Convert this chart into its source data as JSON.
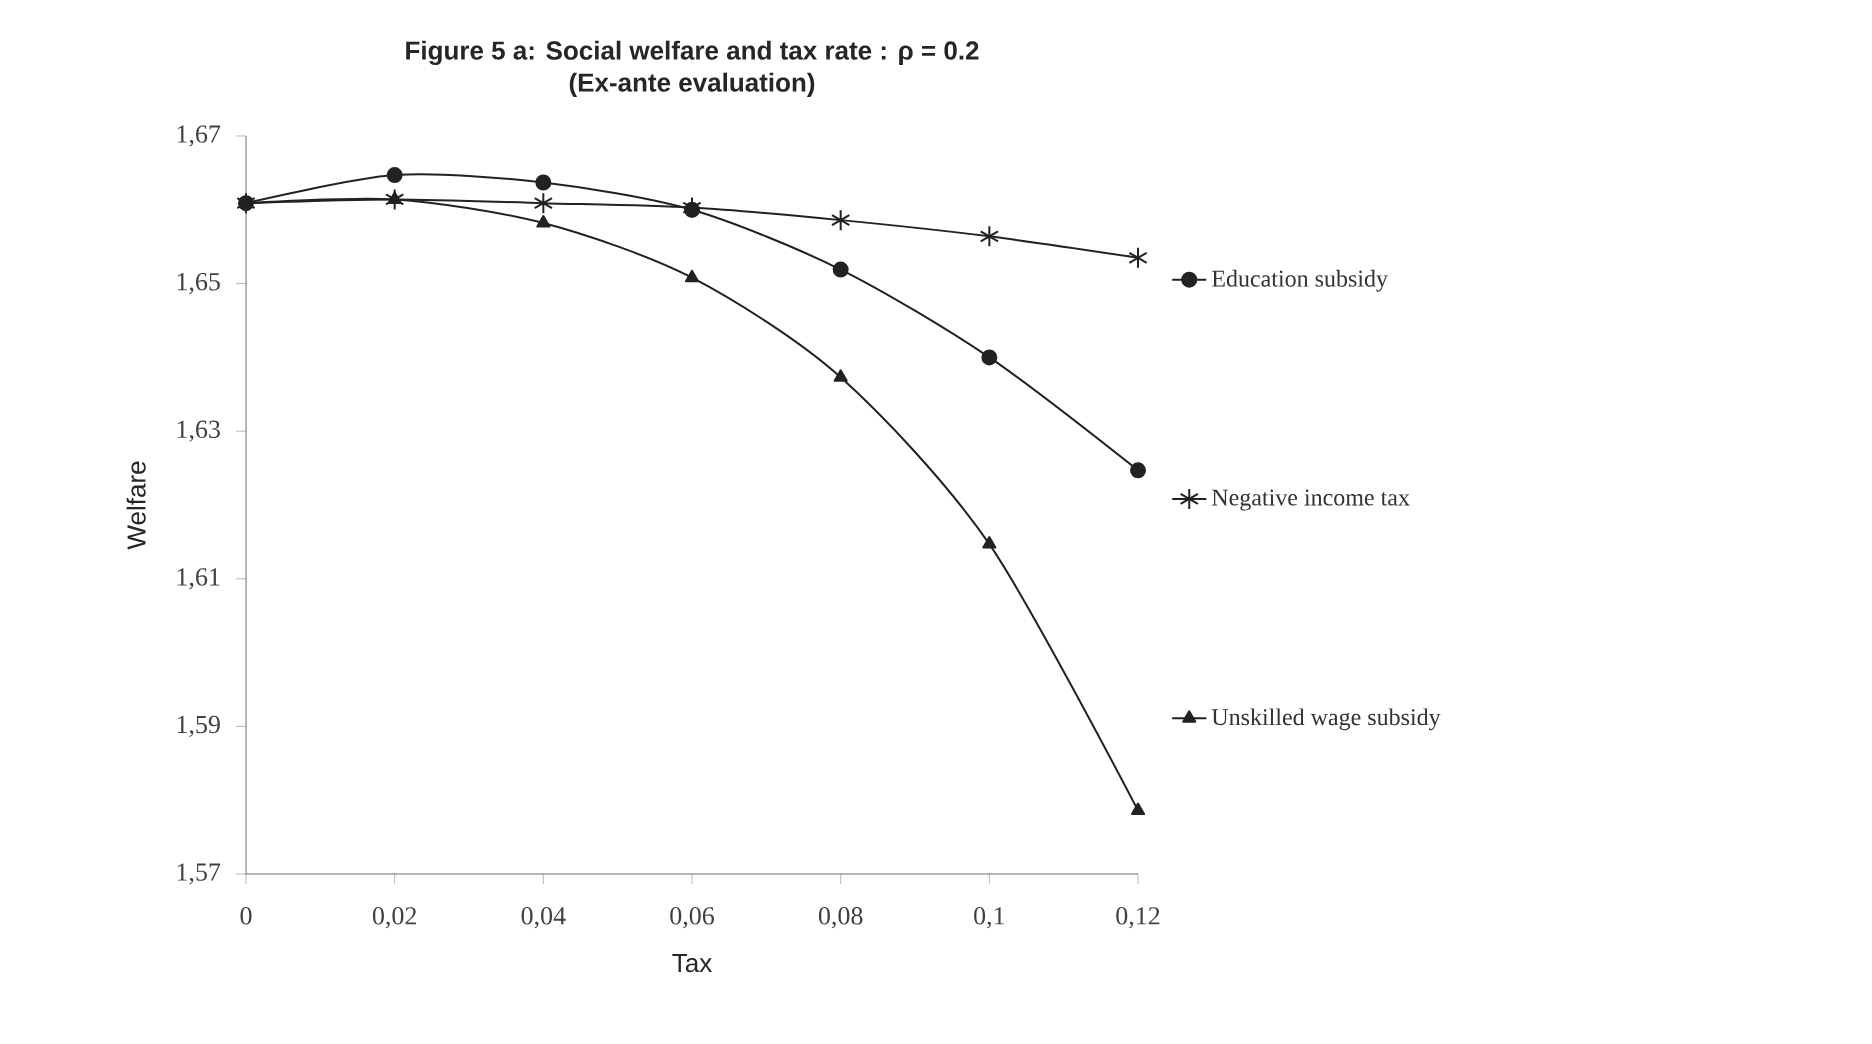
{
  "chart_data": {
    "type": "line",
    "title": "Figure 5 a: Social welfare and tax rate : ρ = 0.2",
    "subtitle": "(Ex-ante evaluation)",
    "xlabel": "Tax",
    "ylabel": "Welfare",
    "x": [
      0,
      0.02,
      0.04,
      0.06,
      0.08,
      0.1,
      0.12
    ],
    "series": [
      {
        "name": "Education subsidy",
        "color": "#222222",
        "marker": "circle",
        "values": [
          1.6609,
          1.6647,
          1.6637,
          1.66,
          1.6519,
          1.64,
          1.6247
        ]
      },
      {
        "name": "Negative income tax",
        "color": "#222222",
        "marker": "cross",
        "values": [
          1.6609,
          1.6614,
          1.6609,
          1.6603,
          1.6586,
          1.6564,
          1.6535
        ]
      },
      {
        "name": "Unskilled wage subsidy",
        "color": "#222222",
        "marker": "triangle",
        "values": [
          1.6609,
          1.6614,
          1.6582,
          1.6508,
          1.6373,
          1.6147,
          1.5786
        ]
      }
    ],
    "xlim": [
      0,
      0.12
    ],
    "ylim": [
      1.57,
      1.67
    ],
    "xticks": [
      0,
      {
        "value": 0.02,
        "label": "0,02"
      },
      {
        "value": 0.04,
        "label": "0,04"
      },
      {
        "value": 0.06,
        "label": "0,06"
      },
      {
        "value": 0.08,
        "label": "0,08"
      },
      {
        "value": 0.1,
        "label": "0,1"
      },
      {
        "value": 0.12,
        "label": "0,12"
      }
    ],
    "yticks": [
      {
        "value": 1.57,
        "label": "1,57"
      },
      {
        "value": 1.59,
        "label": "1,59"
      },
      {
        "value": 1.61,
        "label": "1,61"
      },
      {
        "value": 1.63,
        "label": "1,63"
      },
      {
        "value": 1.65,
        "label": "1,65"
      },
      {
        "value": 1.67,
        "label": "1,67"
      }
    ],
    "grid": false,
    "legend": "right",
    "line_style": "solid"
  }
}
